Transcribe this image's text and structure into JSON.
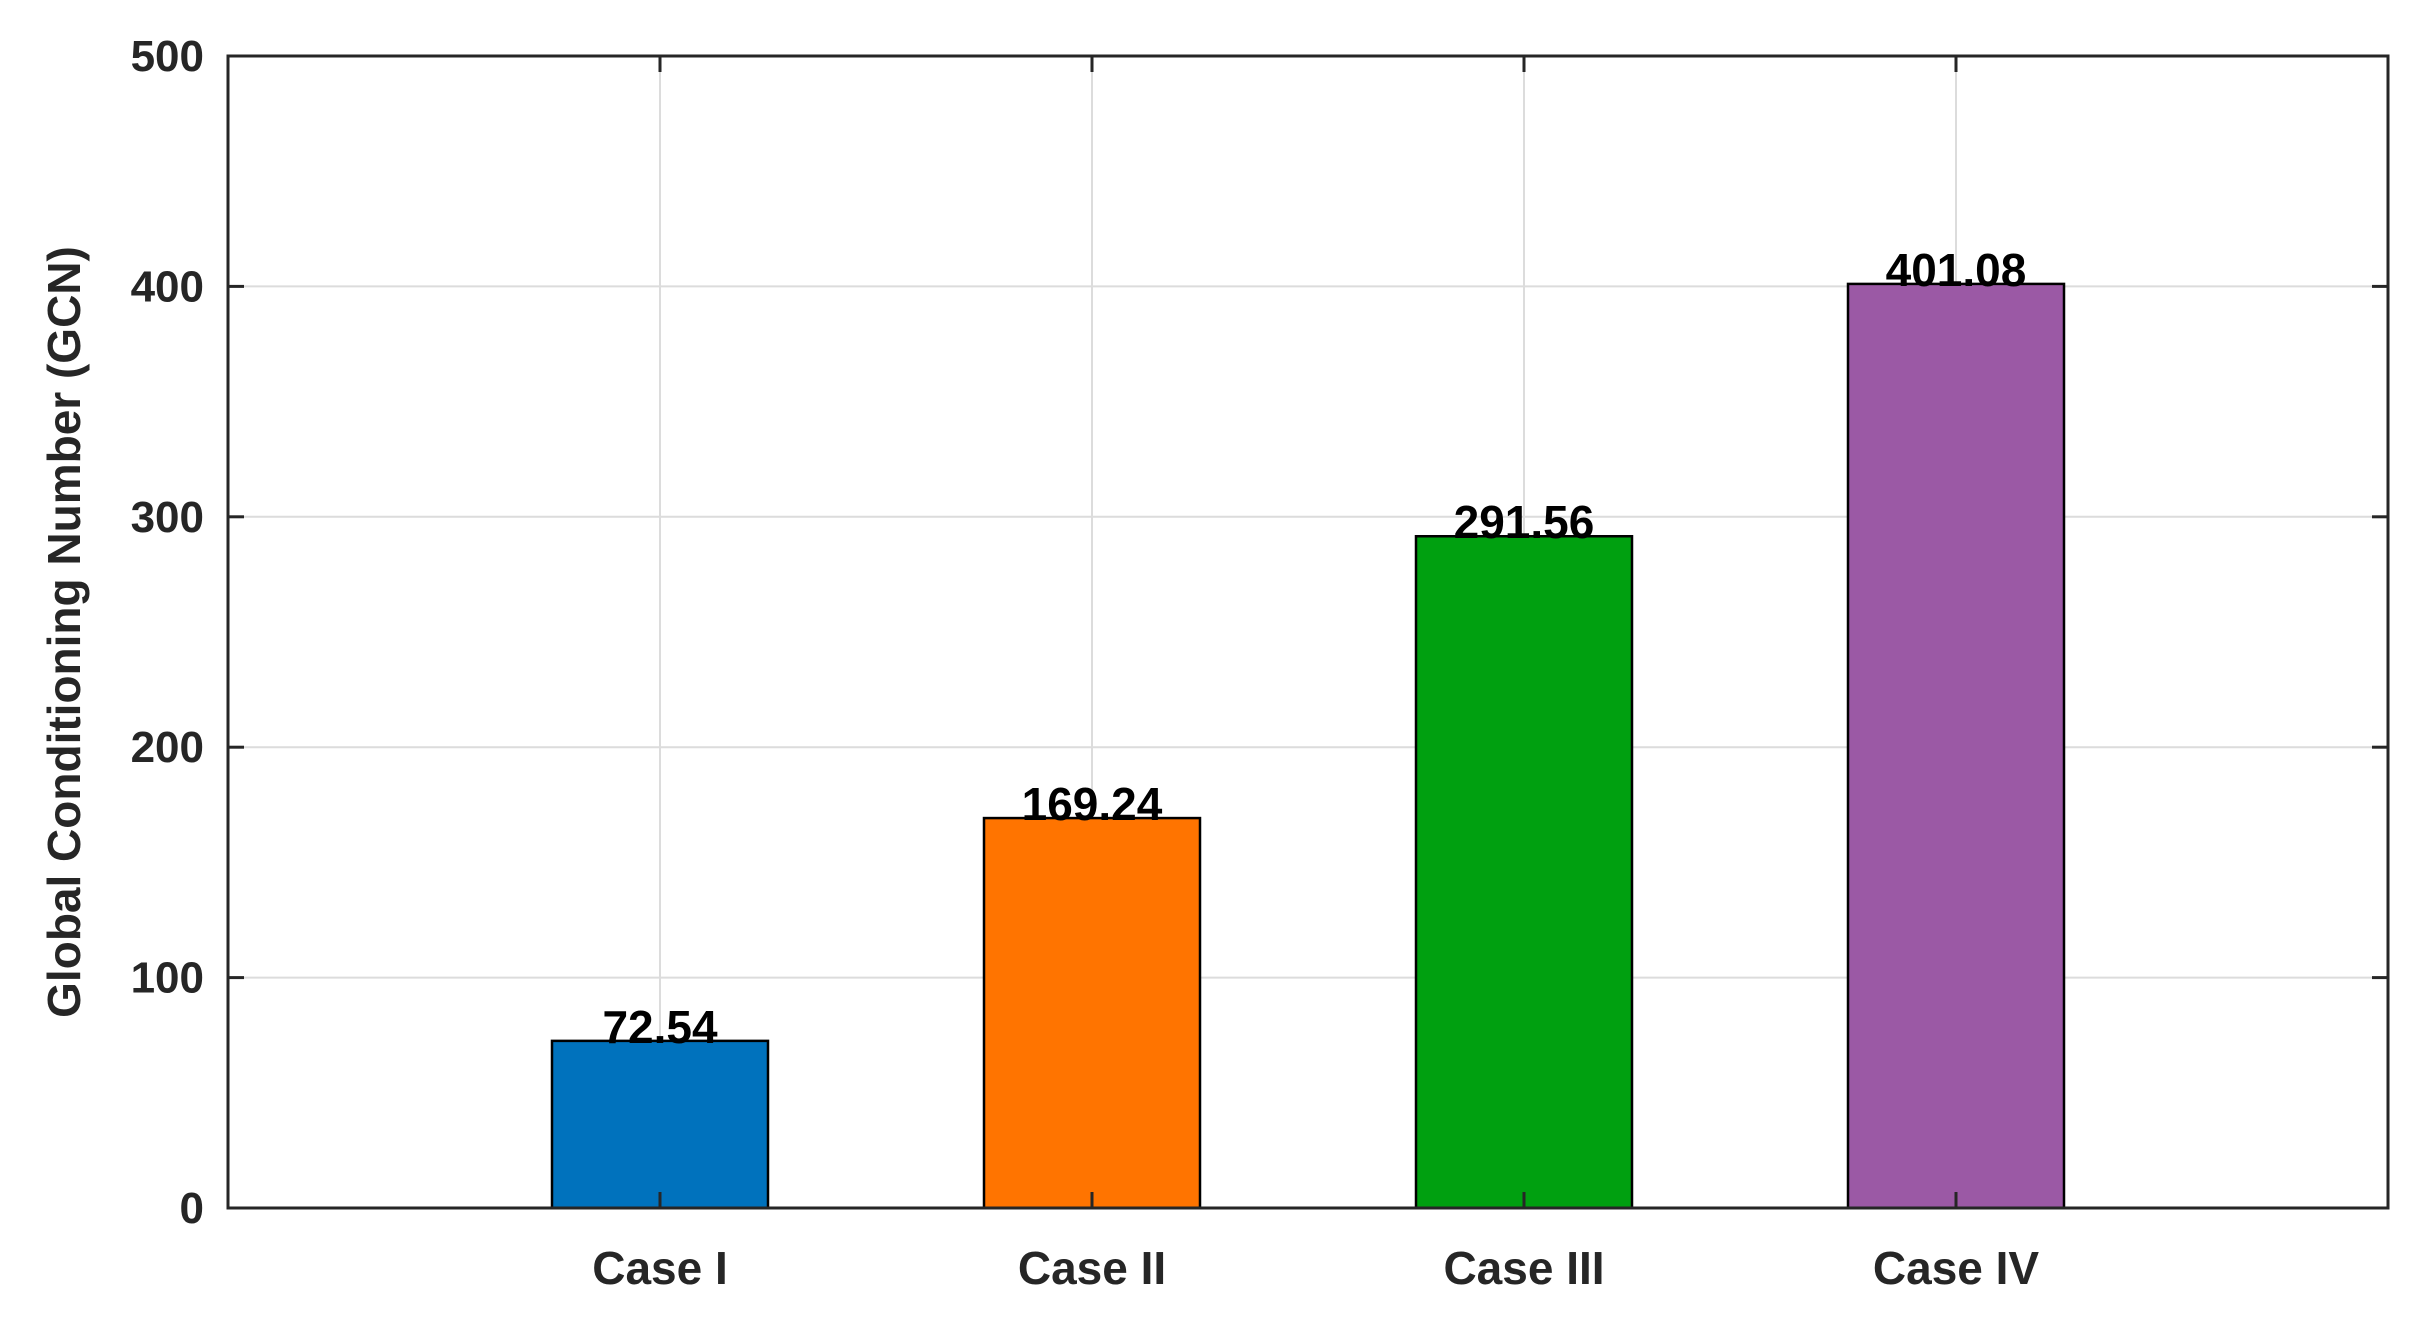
{
  "chart_data": {
    "type": "bar",
    "categories": [
      "Case I",
      "Case II",
      "Case III",
      "Case IV"
    ],
    "values": [
      72.54,
      169.24,
      291.56,
      401.08
    ],
    "data_labels": [
      "72.54",
      "169.24",
      "291.56",
      "401.08"
    ],
    "bar_colors": [
      "#0072BD",
      "#FF7400",
      "#00A010",
      "#9B59A5"
    ],
    "xlabel": "",
    "ylabel": "Global Conditioning Number (GCN)",
    "ylim": [
      0,
      500
    ],
    "yticks": [
      0,
      100,
      200,
      300,
      400,
      500
    ],
    "ytick_labels": [
      "0",
      "100",
      "200",
      "300",
      "400",
      "500"
    ],
    "xlim": [
      0,
      5
    ],
    "grid": true,
    "legend": "none"
  }
}
